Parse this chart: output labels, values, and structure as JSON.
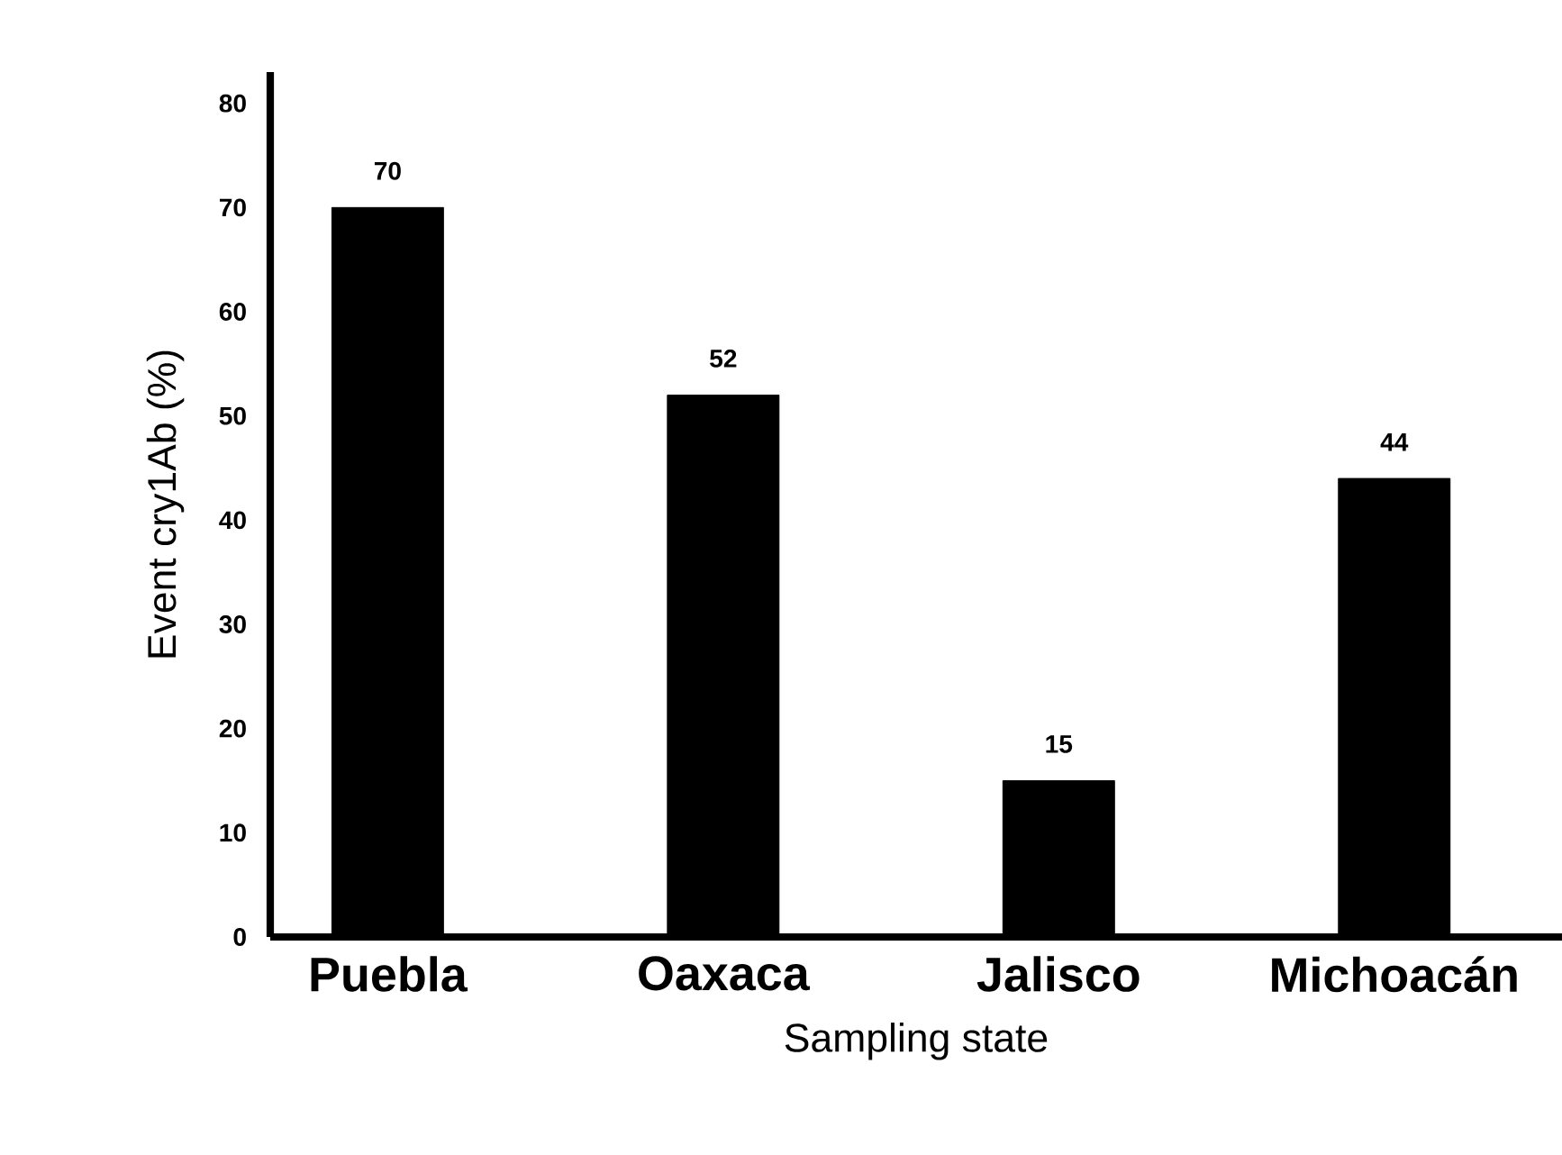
{
  "chart_data": {
    "type": "bar",
    "xlabel": "Sampling state",
    "ylabel": "Event cry1Ab (%)",
    "categories": [
      "Puebla",
      "Oaxaca",
      "Jalisco",
      "Michoacán"
    ],
    "values": [
      70,
      52,
      15,
      44
    ],
    "color": "#000000",
    "data_labels": true,
    "ylim": [
      0,
      83
    ],
    "yticks": [
      0,
      10,
      20,
      30,
      40,
      50,
      60,
      70,
      80
    ],
    "grid": false
  }
}
